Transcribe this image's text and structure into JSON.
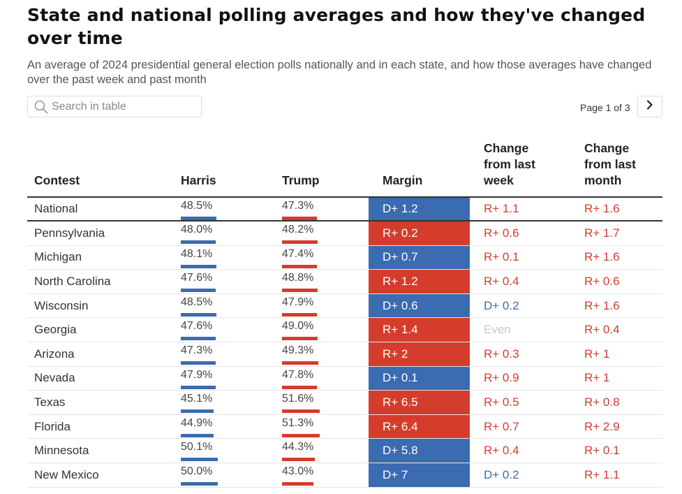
{
  "header": {
    "title": "State and national polling averages and how they've changed over time",
    "subtitle": "An average of 2024 presidential general election polls nationally and in each state, and how those averages have changed over the past week and past month"
  },
  "search": {
    "placeholder": "Search in table",
    "value": ""
  },
  "pager": {
    "label": "Page 1 of 3",
    "icon": "chevron-right-icon"
  },
  "colors": {
    "dem": "#3b6bb0",
    "rep": "#d43d2c",
    "even": "#c8c8c8"
  },
  "columns": {
    "contest": "Contest",
    "harris": "Harris",
    "trump": "Trump",
    "margin": "Margin",
    "week": [
      "Change",
      "from last",
      "week"
    ],
    "month": [
      "Change",
      "from last",
      "month"
    ]
  },
  "rows": [
    {
      "contest": "National",
      "harris": "48.5%",
      "trump": "47.3%",
      "margin": "D+ 1.2",
      "week": "R+ 1.1",
      "month": "R+ 1.6"
    },
    {
      "contest": "Pennsylvania",
      "harris": "48.0%",
      "trump": "48.2%",
      "margin": "R+ 0.2",
      "week": "R+ 0.6",
      "month": "R+ 1.7"
    },
    {
      "contest": "Michigan",
      "harris": "48.1%",
      "trump": "47.4%",
      "margin": "D+ 0.7",
      "week": "R+ 0.1",
      "month": "R+ 1.6"
    },
    {
      "contest": "North Carolina",
      "harris": "47.6%",
      "trump": "48.8%",
      "margin": "R+ 1.2",
      "week": "R+ 0.4",
      "month": "R+ 0.6"
    },
    {
      "contest": "Wisconsin",
      "harris": "48.5%",
      "trump": "47.9%",
      "margin": "D+ 0.6",
      "week": "D+ 0.2",
      "month": "R+ 1.6"
    },
    {
      "contest": "Georgia",
      "harris": "47.6%",
      "trump": "49.0%",
      "margin": "R+ 1.4",
      "week": "Even",
      "month": "R+ 0.4"
    },
    {
      "contest": "Arizona",
      "harris": "47.3%",
      "trump": "49.3%",
      "margin": "R+ 2",
      "week": "R+ 0.3",
      "month": "R+ 1"
    },
    {
      "contest": "Nevada",
      "harris": "47.9%",
      "trump": "47.8%",
      "margin": "D+ 0.1",
      "week": "R+ 0.9",
      "month": "R+ 1"
    },
    {
      "contest": "Texas",
      "harris": "45.1%",
      "trump": "51.6%",
      "margin": "R+ 6.5",
      "week": "R+ 0.5",
      "month": "R+ 0.8"
    },
    {
      "contest": "Florida",
      "harris": "44.9%",
      "trump": "51.3%",
      "margin": "R+ 6.4",
      "week": "R+ 0.7",
      "month": "R+ 2.9"
    },
    {
      "contest": "Minnesota",
      "harris": "50.1%",
      "trump": "44.3%",
      "margin": "D+ 5.8",
      "week": "R+ 0.4",
      "month": "R+ 0.1"
    },
    {
      "contest": "New Mexico",
      "harris": "50.0%",
      "trump": "43.0%",
      "margin": "D+ 7",
      "week": "D+ 0.2",
      "month": "R+ 1.1"
    }
  ]
}
